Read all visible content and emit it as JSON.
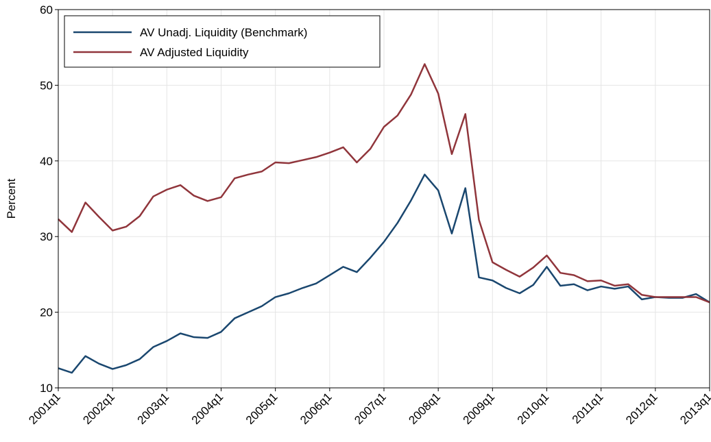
{
  "chart_data": {
    "type": "line",
    "y_label": "Percent",
    "categories": [
      "2001q1",
      null,
      null,
      null,
      "2002q1",
      null,
      null,
      null,
      "2003q1",
      null,
      null,
      null,
      "2004q1",
      null,
      null,
      null,
      "2005q1",
      null,
      null,
      null,
      "2006q1",
      null,
      null,
      null,
      "2007q1",
      null,
      null,
      null,
      "2008q1",
      null,
      null,
      null,
      "2009q1",
      null,
      null,
      null,
      "2010q1",
      null,
      null,
      null,
      "2011q1",
      null,
      null,
      null,
      "2012q1",
      null,
      null,
      null,
      "2013q1"
    ],
    "series": [
      {
        "name": "AV Unadj. Liquidity (Benchmark)",
        "color": "#1a476f",
        "values": [
          12.6,
          12.0,
          14.2,
          13.2,
          12.5,
          13.0,
          13.8,
          15.4,
          16.2,
          17.2,
          16.7,
          16.6,
          17.4,
          19.2,
          20.0,
          20.8,
          22.0,
          22.5,
          23.2,
          23.8,
          24.9,
          26.0,
          25.3,
          27.2,
          29.3,
          31.8,
          34.8,
          38.2,
          36.1,
          30.4,
          36.4,
          24.6,
          24.2,
          23.2,
          22.5,
          23.6,
          26.0,
          23.5,
          23.7,
          22.9,
          23.4,
          23.1,
          23.4,
          21.7,
          22.0,
          21.9,
          21.9,
          22.4,
          21.3
        ]
      },
      {
        "name": "AV Adjusted Liquidity",
        "color": "#90353b",
        "values": [
          32.3,
          30.6,
          34.5,
          32.6,
          30.8,
          31.3,
          32.7,
          35.3,
          36.2,
          36.8,
          35.4,
          34.7,
          35.2,
          37.7,
          38.2,
          38.6,
          39.8,
          39.7,
          40.1,
          40.5,
          41.1,
          41.8,
          39.8,
          41.6,
          44.5,
          46.0,
          48.8,
          52.8,
          48.9,
          40.9,
          46.2,
          32.2,
          26.6,
          25.6,
          24.7,
          25.9,
          27.5,
          25.2,
          24.9,
          24.1,
          24.2,
          23.5,
          23.7,
          22.3,
          22.0,
          22.0,
          22.0,
          22.0,
          21.3
        ]
      }
    ],
    "ylim": [
      10,
      60
    ],
    "yticks": [
      10,
      20,
      30,
      40,
      50,
      60
    ],
    "grid": true,
    "legend": "upper left"
  }
}
